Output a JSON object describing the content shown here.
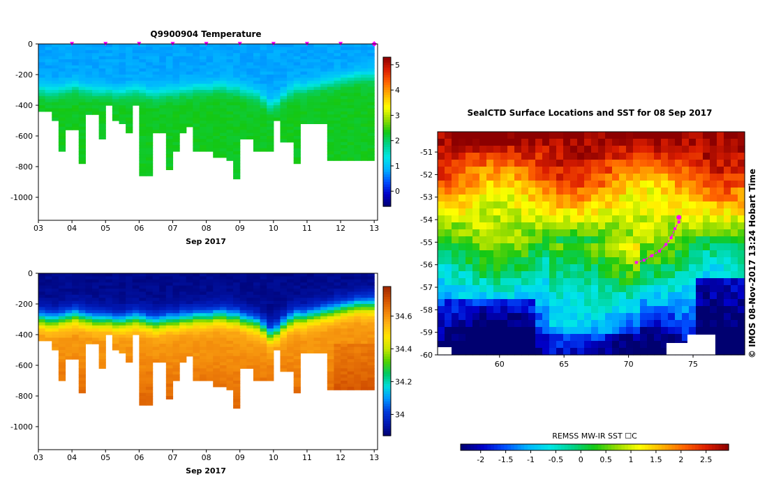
{
  "chart_data": [
    {
      "type": "heatmap",
      "title": "Q9900904  Temperature",
      "x_tick_labels": [
        "03",
        "04",
        "05",
        "06",
        "07",
        "08",
        "09",
        "10",
        "11",
        "12",
        "13"
      ],
      "x_axis_label": "Sep 2017",
      "y_tick_labels": [
        "0",
        "-200",
        "-400",
        "-600",
        "-800",
        "-1000"
      ],
      "y_ticks": [
        0,
        -200,
        -400,
        -600,
        -800,
        -1000
      ],
      "ylim": [
        -1150,
        0
      ],
      "xlim_day": [
        3,
        13.1
      ],
      "profile_days": [
        3.1,
        3.3,
        3.5,
        3.7,
        3.9,
        4.1,
        4.3,
        4.5,
        4.7,
        4.9,
        5.1,
        5.3,
        5.5,
        5.7,
        5.9,
        6.1,
        6.3,
        6.5,
        6.7,
        6.9,
        7.1,
        7.3,
        7.5,
        7.7,
        7.9,
        8.1,
        8.3,
        8.5,
        8.7,
        8.9,
        9.1,
        9.3,
        9.5,
        9.7,
        9.9,
        10.1,
        10.3,
        10.5,
        10.7,
        10.9,
        11.1,
        11.3,
        11.5,
        11.7,
        11.9,
        12.1,
        12.3,
        12.5,
        12.7,
        12.9
      ],
      "profile_max_depth": [
        -440,
        -440,
        -500,
        -690,
        -560,
        -560,
        -780,
        -460,
        -460,
        -620,
        -400,
        -500,
        -520,
        -570,
        -400,
        -860,
        -860,
        -580,
        -580,
        -820,
        -690,
        -580,
        -530,
        -700,
        -700,
        -700,
        -730,
        -730,
        -760,
        -870,
        -620,
        -620,
        -700,
        -700,
        -700,
        -500,
        -630,
        -630,
        -770,
        -520,
        -520,
        -520,
        -520,
        -750,
        -750,
        -750,
        -750,
        -750,
        -750,
        -750
      ],
      "thermocline_depth": [
        -290,
        -300,
        -300,
        -290,
        -280,
        -270,
        -280,
        -290,
        -300,
        -300,
        -300,
        -310,
        -310,
        -300,
        -290,
        -300,
        -310,
        -320,
        -310,
        -300,
        -300,
        -290,
        -290,
        -280,
        -280,
        -280,
        -270,
        -270,
        -280,
        -280,
        -300,
        -310,
        -320,
        -350,
        -390,
        -370,
        -330,
        -300,
        -280,
        -280,
        -270,
        -260,
        -250,
        -240,
        -230,
        -220,
        -210,
        -200,
        -200,
        -200
      ],
      "surface_markers_day": [
        4,
        5,
        6,
        7,
        8,
        9,
        10,
        11,
        12,
        13
      ],
      "colorbar": {
        "min": -0.6,
        "max": 5.3,
        "tick_labels": [
          "0",
          "1",
          "2",
          "3",
          "4",
          "5"
        ],
        "ticks": [
          0,
          1,
          2,
          3,
          4,
          5
        ]
      },
      "value_range": {
        "mixed_layer": 0.8,
        "deep": 2.3
      }
    },
    {
      "type": "heatmap",
      "title": "",
      "x_tick_labels": [
        "03",
        "04",
        "05",
        "06",
        "07",
        "08",
        "09",
        "10",
        "11",
        "12",
        "13"
      ],
      "x_axis_label": "Sep 2017",
      "y_tick_labels": [
        "0",
        "-200",
        "-400",
        "-600",
        "-800",
        "-1000"
      ],
      "y_ticks": [
        0,
        -200,
        -400,
        -600,
        -800,
        -1000
      ],
      "ylim": [
        -1150,
        0
      ],
      "colorbar": {
        "min": 33.87,
        "max": 34.78,
        "tick_labels": [
          "34",
          "34.2",
          "34.4",
          "34.6"
        ],
        "ticks": [
          34,
          34.2,
          34.4,
          34.6
        ]
      },
      "value_range": {
        "surface": 33.9,
        "deep": 34.7
      }
    },
    {
      "type": "heatmap",
      "title": "SealCTD Surface Locations and SST for 08 Sep 2017",
      "x_tick_labels": [
        "60",
        "65",
        "70",
        "75"
      ],
      "x_ticks": [
        60,
        65,
        70,
        75
      ],
      "xlim": [
        55.2,
        79.0
      ],
      "y_tick_labels": [
        "-51",
        "-52",
        "-53",
        "-54",
        "-55",
        "-56",
        "-57",
        "-58",
        "-59",
        "-60"
      ],
      "y_ticks": [
        -51,
        -52,
        -53,
        -54,
        -55,
        -56,
        -57,
        -58,
        -59,
        -60
      ],
      "ylim": [
        -60,
        -50.1
      ],
      "colorbar_label": "REMSS MW-IR SST ☐C",
      "colorbar": {
        "min": -2.4,
        "max": 2.95,
        "tick_labels": [
          "-2",
          "-1.5",
          "-1",
          "-0.5",
          "0",
          "0.5",
          "1",
          "1.5",
          "2",
          "2.5"
        ],
        "ticks": [
          -2,
          -1.5,
          -1,
          -0.5,
          0,
          0.5,
          1,
          1.5,
          2,
          2.5
        ]
      },
      "track_lon": [
        70.6,
        71.2,
        71.8,
        72.4,
        72.9,
        73.3,
        73.6,
        73.9
      ],
      "track_lat": [
        -55.9,
        -55.8,
        -55.6,
        -55.4,
        -55.1,
        -54.8,
        -54.4,
        -54.1
      ],
      "latest_position": {
        "lon": 73.9,
        "lat": -53.9
      },
      "side_credit": "©  IMOS 08-Nov-2017 13:24 Hobart Time"
    }
  ],
  "colors": {
    "magenta": "#ff00ff",
    "thermo_scale": [
      "#000070",
      "#0000c8",
      "#0050ff",
      "#00b4ff",
      "#00e6e6",
      "#00d28c",
      "#14c814",
      "#96dc00",
      "#ffff00",
      "#ffb400",
      "#ff6400",
      "#dc1e00",
      "#8c0000"
    ],
    "salt_scale": [
      "#000070",
      "#0018b4",
      "#003cdc",
      "#0096ff",
      "#00dcdc",
      "#00c864",
      "#50d200",
      "#c8e600",
      "#ffe600",
      "#ffb414",
      "#f0820a",
      "#d25000",
      "#a02800"
    ]
  }
}
